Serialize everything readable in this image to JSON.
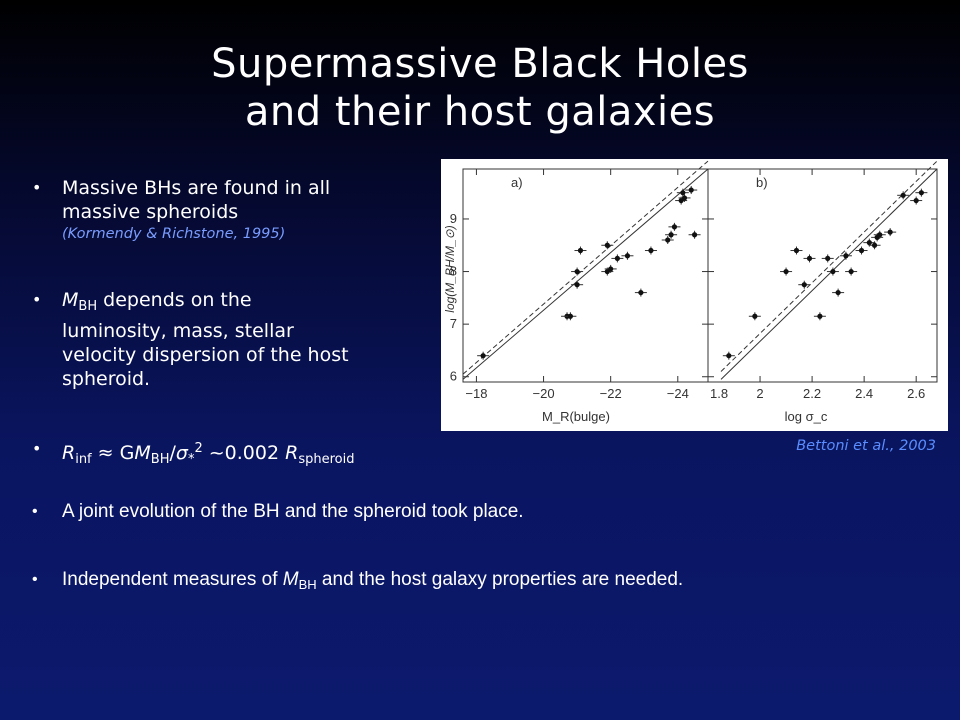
{
  "slide": {
    "title_line1": "Supermassive Black Holes",
    "title_line2": "and their host galaxies",
    "bullet1": {
      "text_line1": "Massive BHs are found in all",
      "text_line2": "massive spheroids",
      "citation": "(Kormendy & Richstone, 1995)"
    },
    "bullet2": {
      "m": "M",
      "m_sub": "BH",
      "line1_rest": " depends on the",
      "line2": "luminosity, mass, stellar",
      "line3": "velocity dispersion of the host",
      "line4": "spheroid."
    },
    "bullet3": {
      "r": "R",
      "r_sub": "inf",
      "approx": " ≈ G",
      "m": "M",
      "m_sub": "BH",
      "slash": "/",
      "sigma": "σ",
      "sigma_sub": "*",
      "sigma_sup": "2",
      "tilde": " ~0.002 ",
      "r2": "R",
      "r2_sub": "spheroid"
    },
    "bullet4": "A joint evolution of the BH and the spheroid took place.",
    "bullet5": {
      "pre": "Independent measures of ",
      "m": "M",
      "m_sub": "BH",
      "post": " and the host galaxy properties are needed."
    },
    "figure_credit": "Bettoni et al., 2003",
    "colors": {
      "citation": "#7a9cff",
      "credit": "#5a8dff",
      "bg_top": "#000000",
      "bg_bottom": "#0c1a6e"
    }
  },
  "chart_data": [
    {
      "type": "scatter",
      "panel_label": "a)",
      "xlabel": "M_R(bulge)",
      "ylabel": "log(M_BH/M_⊙)",
      "x_ticks": [
        "−18",
        "−20",
        "−22",
        "−24"
      ],
      "y_ticks": [
        "6",
        "7",
        "8",
        "9"
      ],
      "xlim": [
        -17.6,
        -24.9
      ],
      "ylim": [
        5.9,
        9.95
      ],
      "grid": false,
      "points": [
        {
          "x": -18.2,
          "y": 6.4
        },
        {
          "x": -20.7,
          "y": 7.15
        },
        {
          "x": -20.8,
          "y": 7.15
        },
        {
          "x": -21.0,
          "y": 7.75
        },
        {
          "x": -21.0,
          "y": 8.0
        },
        {
          "x": -21.1,
          "y": 8.4
        },
        {
          "x": -21.9,
          "y": 8.0
        },
        {
          "x": -21.9,
          "y": 8.5
        },
        {
          "x": -22.0,
          "y": 8.05
        },
        {
          "x": -22.2,
          "y": 8.25
        },
        {
          "x": -22.5,
          "y": 8.3
        },
        {
          "x": -22.9,
          "y": 7.6
        },
        {
          "x": -23.2,
          "y": 8.4
        },
        {
          "x": -23.7,
          "y": 8.6
        },
        {
          "x": -23.8,
          "y": 8.7
        },
        {
          "x": -23.9,
          "y": 8.85
        },
        {
          "x": -24.1,
          "y": 9.35
        },
        {
          "x": -24.15,
          "y": 9.5
        },
        {
          "x": -24.2,
          "y": 9.4
        },
        {
          "x": -24.4,
          "y": 9.55
        },
        {
          "x": -24.5,
          "y": 8.7
        }
      ],
      "fit_lines": [
        {
          "style": "solid",
          "from": [
            -17.6,
            5.95
          ],
          "to": [
            -24.9,
            9.95
          ]
        },
        {
          "style": "dashed",
          "from": [
            -17.6,
            6.05
          ],
          "to": [
            -24.9,
            10.1
          ]
        }
      ]
    },
    {
      "type": "scatter",
      "panel_label": "b)",
      "xlabel": "log σ_c",
      "ylabel": "",
      "x_ticks": [
        "1.8",
        "2",
        "2.2",
        "2.4",
        "2.6"
      ],
      "y_ticks": [],
      "xlim": [
        1.8,
        2.68
      ],
      "ylim": [
        5.9,
        9.95
      ],
      "grid": false,
      "points": [
        {
          "x": 1.88,
          "y": 6.4
        },
        {
          "x": 1.98,
          "y": 7.15
        },
        {
          "x": 2.1,
          "y": 8.0
        },
        {
          "x": 2.14,
          "y": 8.4
        },
        {
          "x": 2.17,
          "y": 7.75
        },
        {
          "x": 2.19,
          "y": 8.25
        },
        {
          "x": 2.23,
          "y": 7.15
        },
        {
          "x": 2.26,
          "y": 8.25
        },
        {
          "x": 2.28,
          "y": 8.0
        },
        {
          "x": 2.3,
          "y": 7.6
        },
        {
          "x": 2.33,
          "y": 8.3
        },
        {
          "x": 2.35,
          "y": 8.0
        },
        {
          "x": 2.39,
          "y": 8.4
        },
        {
          "x": 2.42,
          "y": 8.55
        },
        {
          "x": 2.44,
          "y": 8.5
        },
        {
          "x": 2.45,
          "y": 8.65
        },
        {
          "x": 2.46,
          "y": 8.7
        },
        {
          "x": 2.5,
          "y": 8.75
        },
        {
          "x": 2.55,
          "y": 9.45
        },
        {
          "x": 2.6,
          "y": 9.35
        },
        {
          "x": 2.62,
          "y": 9.5
        }
      ],
      "fit_lines": [
        {
          "style": "solid",
          "from": [
            1.85,
            5.95
          ],
          "to": [
            2.68,
            9.95
          ]
        },
        {
          "style": "dashed",
          "from": [
            1.85,
            6.1
          ],
          "to": [
            2.68,
            10.1
          ]
        }
      ]
    }
  ]
}
